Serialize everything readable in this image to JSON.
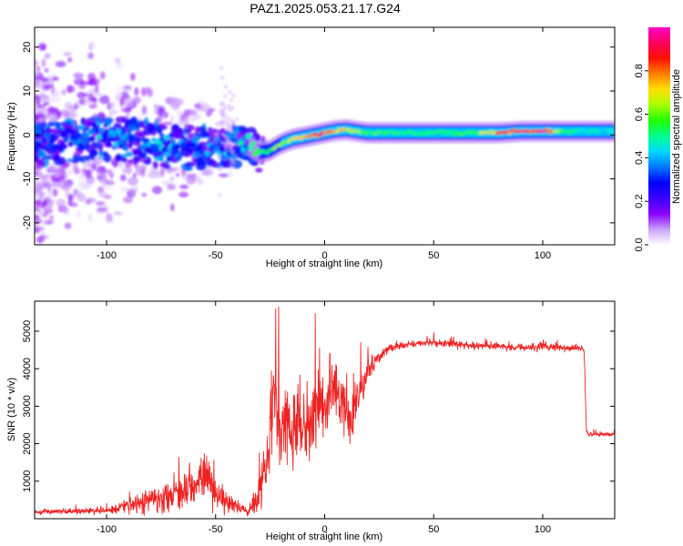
{
  "title": "PAZ1.2025.053.21.17.G24",
  "chart_data": [
    {
      "type": "heatmap",
      "title": "PAZ1.2025.053.21.17.G24",
      "xlabel": "Height of straight line (km)",
      "ylabel": "Frequency (Hz)",
      "xlim": [
        -133,
        133
      ],
      "ylim": [
        -25,
        24.5
      ],
      "x_ticks": [
        -100,
        -50,
        0,
        50,
        100
      ],
      "y_ticks": [
        -20,
        -10,
        0,
        10,
        20
      ],
      "colorbar": {
        "label": "Normalized spectral amplitude",
        "ticks": [
          "0.0",
          "0.2",
          "0.4",
          "0.6",
          "0.8"
        ],
        "range": [
          0,
          1
        ],
        "colors": [
          "#ffffff",
          "#c9a0ff",
          "#8a00ff",
          "#3a00ff",
          "#0000ff",
          "#0078ff",
          "#00d8ff",
          "#00ff90",
          "#20ff00",
          "#a8ff00",
          "#ffe000",
          "#ff8000",
          "#ff1000",
          "#ff0060",
          "#ff00c8"
        ]
      },
      "ridge": {
        "x": [
          -133,
          -120,
          -110,
          -100,
          -90,
          -80,
          -70,
          -60,
          -55,
          -50,
          -45,
          -40,
          -35,
          -30,
          -25,
          -20,
          -15,
          -10,
          -5,
          0,
          5,
          10,
          15,
          20,
          30,
          40,
          50,
          60,
          70,
          80,
          90,
          100,
          110,
          120,
          133
        ],
        "frequency": [
          -2,
          -1.5,
          -1,
          -0.5,
          -1,
          -2,
          -2.5,
          -3,
          -2.5,
          -2.5,
          -4,
          -2,
          -2.5,
          -4,
          -3.5,
          -2,
          -1,
          -0.5,
          0,
          0.5,
          1,
          1.2,
          0.8,
          0.5,
          0.5,
          0.5,
          0.5,
          0.5,
          0.5,
          0.5,
          0.8,
          0.8,
          0.8,
          0.8,
          0.8
        ],
        "amplitude": [
          0.3,
          0.35,
          0.4,
          0.45,
          0.35,
          0.4,
          0.45,
          0.4,
          0.45,
          0.4,
          0.4,
          0.45,
          0.5,
          0.55,
          0.6,
          0.65,
          0.7,
          0.8,
          0.85,
          0.9,
          0.8,
          0.7,
          0.65,
          0.6,
          0.55,
          0.55,
          0.55,
          0.55,
          0.6,
          0.85,
          0.9,
          0.95,
          0.6,
          0.5,
          0.45
        ]
      }
    },
    {
      "type": "line",
      "xlabel": "Height of straight line (km)",
      "ylabel": "SNR (10 * v/v)",
      "xlim": [
        -133,
        133
      ],
      "ylim": [
        0,
        5800
      ],
      "x_ticks": [
        -100,
        -50,
        0,
        50,
        100
      ],
      "y_ticks": [
        1000,
        2000,
        3000,
        4000,
        5000
      ],
      "color": "#ee2222",
      "series": [
        {
          "x": [
            -133,
            -120,
            -110,
            -100,
            -90,
            -80,
            -70,
            -65,
            -60,
            -55,
            -50,
            -45,
            -40,
            -35,
            -30,
            -27,
            -25,
            -23,
            -20,
            -17,
            -15,
            -12,
            -10,
            -7,
            -5,
            -2,
            0,
            3,
            5,
            8,
            10,
            12,
            15,
            18,
            20,
            22,
            25,
            28,
            30,
            35,
            40,
            50,
            60,
            70,
            80,
            90,
            100,
            110,
            118,
            119,
            120,
            121,
            125,
            133
          ],
          "y": [
            180,
            200,
            200,
            220,
            350,
            500,
            650,
            750,
            950,
            1100,
            650,
            450,
            300,
            200,
            700,
            1500,
            2600,
            3300,
            2000,
            2700,
            2200,
            2600,
            2300,
            2600,
            2700,
            3000,
            3100,
            3300,
            3500,
            3100,
            2700,
            2800,
            3200,
            3600,
            3900,
            4100,
            4300,
            4450,
            4550,
            4600,
            4650,
            4700,
            4650,
            4600,
            4600,
            4550,
            4600,
            4550,
            4550,
            4450,
            2400,
            2250,
            2250,
            2250
          ],
          "noise": [
            80,
            80,
            90,
            100,
            250,
            400,
            500,
            550,
            600,
            700,
            500,
            350,
            200,
            150,
            600,
            900,
            1300,
            1600,
            1400,
            1300,
            1200,
            1300,
            1200,
            1100,
            1100,
            1000,
            900,
            900,
            1000,
            900,
            900,
            900,
            700,
            600,
            400,
            300,
            200,
            150,
            120,
            120,
            110,
            110,
            110,
            110,
            110,
            110,
            120,
            110,
            110,
            110,
            80,
            60,
            60,
            60
          ]
        }
      ]
    }
  ]
}
